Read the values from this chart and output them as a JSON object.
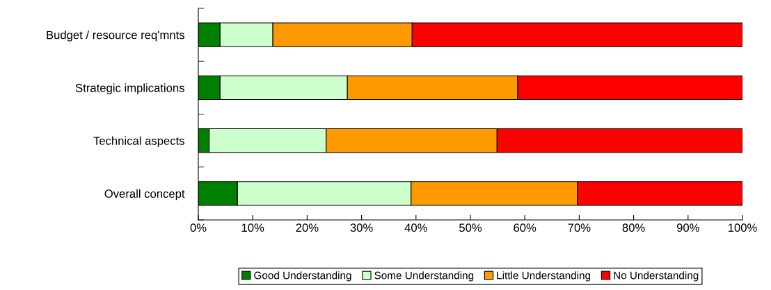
{
  "chart_data": {
    "type": "bar",
    "orientation": "horizontal",
    "stacked": true,
    "categories": [
      "Budget / resource req'mnts",
      "Strategic implications",
      "Technical aspects",
      "Overall concept"
    ],
    "series": [
      {
        "name": "Good Understanding",
        "color": "#008000",
        "values": [
          4.0,
          4.0,
          2.0,
          7.2
        ]
      },
      {
        "name": "Some Understanding",
        "color": "#ccffcc",
        "values": [
          9.7,
          23.4,
          21.5,
          31.9
        ]
      },
      {
        "name": "Little Understanding",
        "color": "#ff9900",
        "values": [
          25.6,
          31.3,
          31.4,
          30.6
        ]
      },
      {
        "name": "No Understanding",
        "color": "#ff0000",
        "values": [
          60.7,
          41.3,
          45.1,
          30.3
        ]
      }
    ],
    "xlim": [
      0,
      100
    ],
    "xticks": [
      {
        "value": 0,
        "label": "0%"
      },
      {
        "value": 10,
        "label": "10%"
      },
      {
        "value": 20,
        "label": "20%"
      },
      {
        "value": 30,
        "label": "30%"
      },
      {
        "value": 40,
        "label": "40%"
      },
      {
        "value": 50,
        "label": "50%"
      },
      {
        "value": 60,
        "label": "60%"
      },
      {
        "value": 70,
        "label": "70%"
      },
      {
        "value": 80,
        "label": "80%"
      },
      {
        "value": 90,
        "label": "90%"
      },
      {
        "value": 100,
        "label": "100%"
      }
    ],
    "grid": false,
    "legend": "bottom"
  }
}
